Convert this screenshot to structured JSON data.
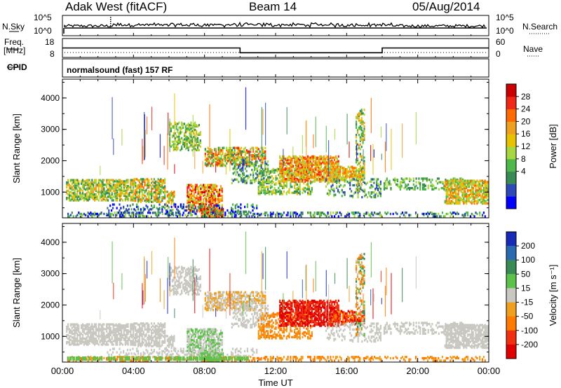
{
  "header": {
    "station": "Adak West (fitACF)",
    "beam": "Beam 14",
    "date": "05/Aug/2014"
  },
  "side_labels": {
    "nsky": "N.Sky",
    "nsearch": "N.Search",
    "freq": "Freq.",
    "mhz": "[MHz]",
    "nave": "Nave",
    "cpid": "CPID"
  },
  "cpid_text": "normalsound (fast) 157 RF",
  "chart_data": [
    {
      "type": "line",
      "title": "",
      "series": [
        {
          "name": "N.Sky"
        },
        {
          "name": "N.Search"
        }
      ],
      "left_ticks": [
        "10^5",
        "10^0"
      ],
      "right_ticks": [
        "10^5",
        "10^0"
      ]
    },
    {
      "type": "line",
      "series": [
        {
          "name": "Freq.",
          "units": "MHz",
          "x": [
            "00:00",
            "10:00",
            "10:00",
            "18:00",
            "18:00",
            "24:00"
          ],
          "values": [
            13,
            13,
            10.5,
            10.5,
            13,
            13
          ]
        },
        {
          "name": "Nave",
          "values": [
            12,
            12
          ]
        }
      ],
      "left_ticks": [
        "18",
        "8"
      ],
      "right_ticks": [
        "60",
        "0"
      ]
    },
    {
      "type": "heatmap",
      "quantity": "Power",
      "ylabel": "Slant Range [km]",
      "yticks": [
        "4000",
        "3000",
        "2000",
        "1000"
      ],
      "ylim": [
        180,
        4600
      ],
      "colorbar_label": "Power [dB]",
      "colorbar_ticks": [
        "28",
        "24",
        "20",
        "16",
        "12",
        "8",
        "4"
      ],
      "colorbar_colors": [
        "#0000ff",
        "#2e4ab8",
        "#3a8a55",
        "#4fb84a",
        "#a6d640",
        "#e6c200",
        "#f0a020",
        "#ff6a00",
        "#f02818",
        "#cc0000"
      ]
    },
    {
      "type": "heatmap",
      "quantity": "Velocity",
      "ylabel": "Slant Range [km]",
      "yticks": [
        "4000",
        "3000",
        "2000",
        "1000"
      ],
      "ylim": [
        180,
        4600
      ],
      "colorbar_label": "Velocity [m s⁻¹]",
      "colorbar_ticks": [
        "200",
        "100",
        "50",
        "15",
        "-15",
        "-50",
        "-100",
        "-200"
      ],
      "colorbar_colors": [
        "#1a2ab8",
        "#2a6ab0",
        "#3a8a55",
        "#5cc24a",
        "#c8c8c0",
        "#f0a020",
        "#ff7a00",
        "#f03010",
        "#e00000"
      ],
      "xticks": [
        "00:00",
        "04:00",
        "08:00",
        "12:00",
        "16:00",
        "20:00",
        "00:00"
      ],
      "xlabel": "Time UT"
    }
  ]
}
